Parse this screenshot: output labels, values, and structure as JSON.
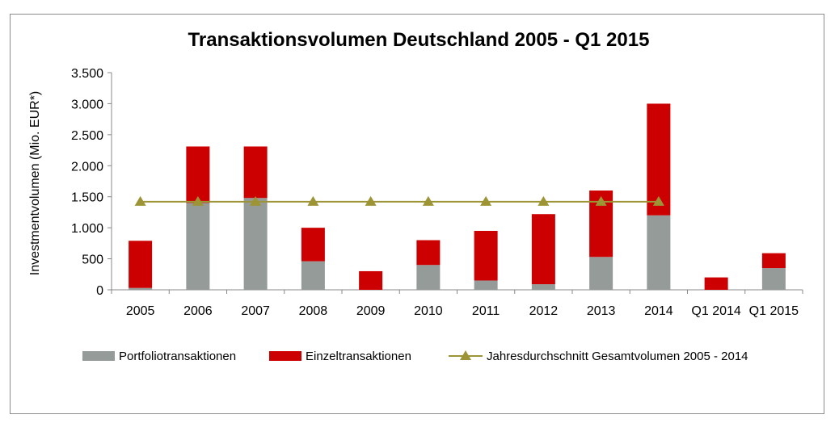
{
  "chart_data": {
    "type": "bar",
    "stacked": true,
    "title": "Transaktionsvolumen Deutschland 2005 - Q1 2015",
    "ylabel": "Investmentvolumen  (Mio. EUR*)",
    "xlabel": "",
    "ylim": [
      0,
      3500
    ],
    "ytick_labels": [
      "0",
      "500",
      "1.000",
      "1.500",
      "2.000",
      "2.500",
      "3.000",
      "3.500"
    ],
    "ytick_values": [
      0,
      500,
      1000,
      1500,
      2000,
      2500,
      3000,
      3500
    ],
    "categories": [
      "2005",
      "2006",
      "2007",
      "2008",
      "2009",
      "2010",
      "2011",
      "2012",
      "2013",
      "2014",
      "Q1 2014",
      "Q1 2015"
    ],
    "series": [
      {
        "name": "Portfoliotransaktionen",
        "color": "#959b98",
        "values": [
          30,
          1400,
          1480,
          460,
          0,
          400,
          150,
          90,
          530,
          1200,
          0,
          350
        ]
      },
      {
        "name": "Einzeltransaktionen",
        "color": "#cc0000",
        "values": [
          760,
          910,
          830,
          540,
          300,
          400,
          800,
          1130,
          1070,
          1800,
          200,
          240
        ]
      }
    ],
    "line": {
      "name": "Jahresdurchschnitt Gesamtvolumen 2005 - 2014",
      "color": "#9c9435",
      "value": 1420,
      "from_category": "2005",
      "to_category": "2014"
    },
    "grid": false,
    "legend_position": "bottom"
  }
}
